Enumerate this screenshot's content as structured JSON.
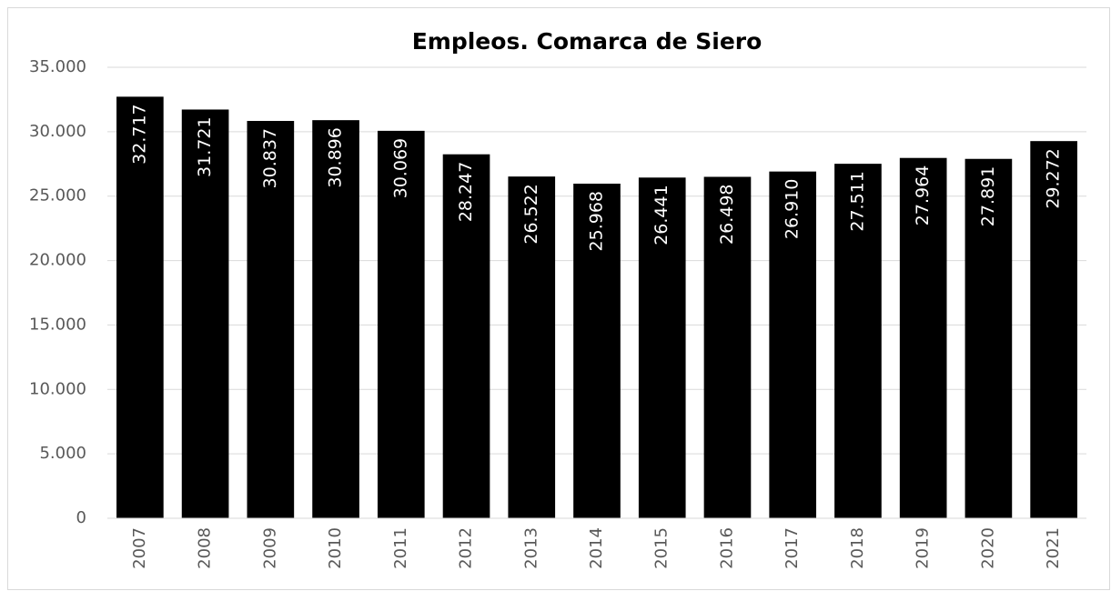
{
  "chart_data": {
    "type": "bar",
    "title": "Empleos. Comarca de Siero",
    "categories": [
      "2007",
      "2008",
      "2009",
      "2010",
      "2011",
      "2012",
      "2013",
      "2014",
      "2015",
      "2016",
      "2017",
      "2018",
      "2019",
      "2020",
      "2021"
    ],
    "values": [
      32717,
      31721,
      30837,
      30896,
      30069,
      28247,
      26522,
      25968,
      26441,
      26498,
      26910,
      27511,
      27964,
      27891,
      29272
    ],
    "value_labels": [
      "32.717",
      "31.721",
      "30.837",
      "30.896",
      "30.069",
      "28.247",
      "26.522",
      "25.968",
      "26.441",
      "26.498",
      "26.910",
      "27.511",
      "27.964",
      "27.891",
      "29.272"
    ],
    "color": "#000000",
    "ylim": [
      0,
      35000
    ],
    "yticks": [
      0,
      {
        "value": 5000,
        "label": "5.000"
      },
      {
        "value": 10000,
        "label": "10.000"
      },
      {
        "value": 15000,
        "label": "15.000"
      },
      {
        "value": 20000,
        "label": "20.000"
      },
      {
        "value": 25000,
        "label": "25.000"
      },
      {
        "value": 30000,
        "label": "30.000"
      },
      {
        "value": 35000,
        "label": "35.000"
      }
    ],
    "grid": true
  }
}
